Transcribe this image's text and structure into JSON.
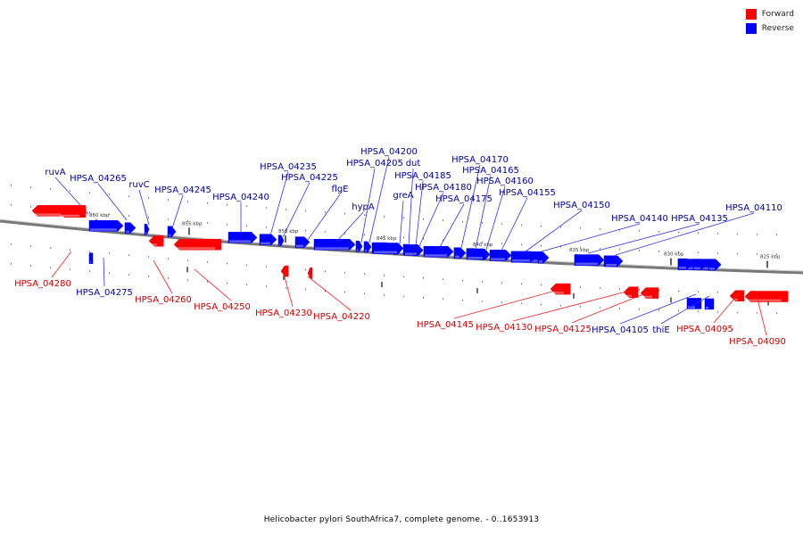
{
  "caption": "Helicobacter pylori SouthAfrica7, complete genome. - 0..1653913",
  "legend": [
    {
      "label": "Forward",
      "color": "#ff0000"
    },
    {
      "label": "Reverse",
      "color": "#0000ff"
    }
  ],
  "colors": {
    "forward": "#ff0000",
    "reverse": "#0000ff",
    "forward_label": "#cc0000",
    "reverse_label": "#000099",
    "backbone": "#777777"
  },
  "scale_ticks": [
    "860 kbp",
    "855 kbp",
    "850 kbp",
    "845 kbp",
    "840 kbp",
    "835 kbp",
    "830 kbp",
    "825 kbp"
  ],
  "genes": [
    {
      "name": "ruvA",
      "strand": "reverse"
    },
    {
      "name": "HPSA_04265",
      "strand": "reverse"
    },
    {
      "name": "ruvC",
      "strand": "reverse"
    },
    {
      "name": "HPSA_04245",
      "strand": "reverse"
    },
    {
      "name": "HPSA_04240",
      "strand": "reverse"
    },
    {
      "name": "HPSA_04235",
      "strand": "reverse"
    },
    {
      "name": "HPSA_04225",
      "strand": "reverse"
    },
    {
      "name": "flgE",
      "strand": "reverse"
    },
    {
      "name": "hypA",
      "strand": "reverse"
    },
    {
      "name": "HPSA_04205",
      "strand": "reverse"
    },
    {
      "name": "HPSA_04200",
      "strand": "reverse"
    },
    {
      "name": "greA",
      "strand": "reverse"
    },
    {
      "name": "dut",
      "strand": "reverse"
    },
    {
      "name": "HPSA_04185",
      "strand": "reverse"
    },
    {
      "name": "HPSA_04180",
      "strand": "reverse"
    },
    {
      "name": "HPSA_04175",
      "strand": "reverse"
    },
    {
      "name": "HPSA_04170",
      "strand": "reverse"
    },
    {
      "name": "HPSA_04165",
      "strand": "reverse"
    },
    {
      "name": "HPSA_04160",
      "strand": "reverse"
    },
    {
      "name": "HPSA_04155",
      "strand": "reverse"
    },
    {
      "name": "HPSA_04150",
      "strand": "reverse"
    },
    {
      "name": "HPSA_04140",
      "strand": "reverse"
    },
    {
      "name": "HPSA_04135",
      "strand": "reverse"
    },
    {
      "name": "HPSA_04110",
      "strand": "reverse"
    },
    {
      "name": "HPSA_04280",
      "strand": "forward"
    },
    {
      "name": "HPSA_04275",
      "strand": "reverse"
    },
    {
      "name": "HPSA_04260",
      "strand": "forward"
    },
    {
      "name": "HPSA_04250",
      "strand": "forward"
    },
    {
      "name": "HPSA_04230",
      "strand": "forward"
    },
    {
      "name": "HPSA_04220",
      "strand": "forward"
    },
    {
      "name": "HPSA_04145",
      "strand": "forward"
    },
    {
      "name": "HPSA_04130",
      "strand": "forward"
    },
    {
      "name": "HPSA_04125",
      "strand": "forward"
    },
    {
      "name": "HPSA_04105",
      "strand": "reverse"
    },
    {
      "name": "thiE",
      "strand": "reverse"
    },
    {
      "name": "HPSA_04095",
      "strand": "forward"
    },
    {
      "name": "HPSA_04090",
      "strand": "forward"
    }
  ]
}
